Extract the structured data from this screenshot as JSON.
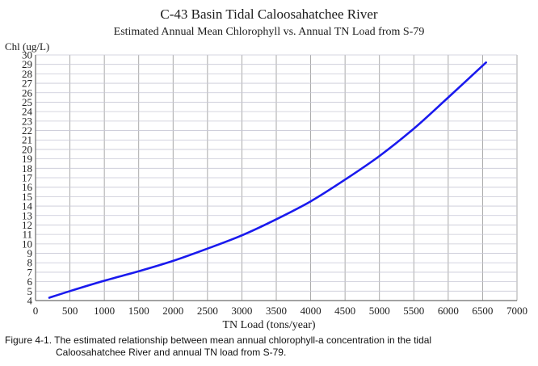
{
  "chart_data": {
    "type": "line",
    "title": "C-43 Basin Tidal Caloosahatchee River",
    "subtitle": "Estimated Annual Mean Chlorophyll vs. Annual TN Load from S-79",
    "xlabel": "TN Load (tons/year)",
    "ylabel": "Chl (ug/L)",
    "xlim": [
      0,
      7000
    ],
    "ylim": [
      4,
      30
    ],
    "x_ticks": [
      0,
      500,
      1000,
      1500,
      2000,
      2500,
      3000,
      3500,
      4000,
      4500,
      5000,
      5500,
      6000,
      6500,
      7000
    ],
    "y_ticks": [
      4,
      5,
      6,
      7,
      8,
      9,
      10,
      11,
      12,
      13,
      14,
      15,
      16,
      17,
      18,
      19,
      20,
      21,
      22,
      23,
      24,
      25,
      26,
      27,
      28,
      29,
      30
    ],
    "grid": true,
    "series": [
      {
        "color": "#1a1aee",
        "x": [
          200,
          500,
          1000,
          1500,
          2000,
          2500,
          3000,
          3500,
          4000,
          4500,
          5000,
          5500,
          6000,
          6550
        ],
        "y": [
          4.3,
          5.0,
          6.1,
          7.1,
          8.2,
          9.5,
          10.9,
          12.6,
          14.5,
          16.8,
          19.3,
          22.2,
          25.5,
          29.2
        ]
      }
    ]
  },
  "colors": {
    "line": "#1a1aee",
    "grid_v": "#a0a0a0",
    "grid_h": "#c8c8d6",
    "axis": "#6b6b6b"
  },
  "caption": {
    "line1": "Figure 4-1.  The estimated relationship between mean annual chlorophyll-a concentration in the tidal",
    "line2": "Caloosahatchee River and annual TN load from S-79."
  }
}
